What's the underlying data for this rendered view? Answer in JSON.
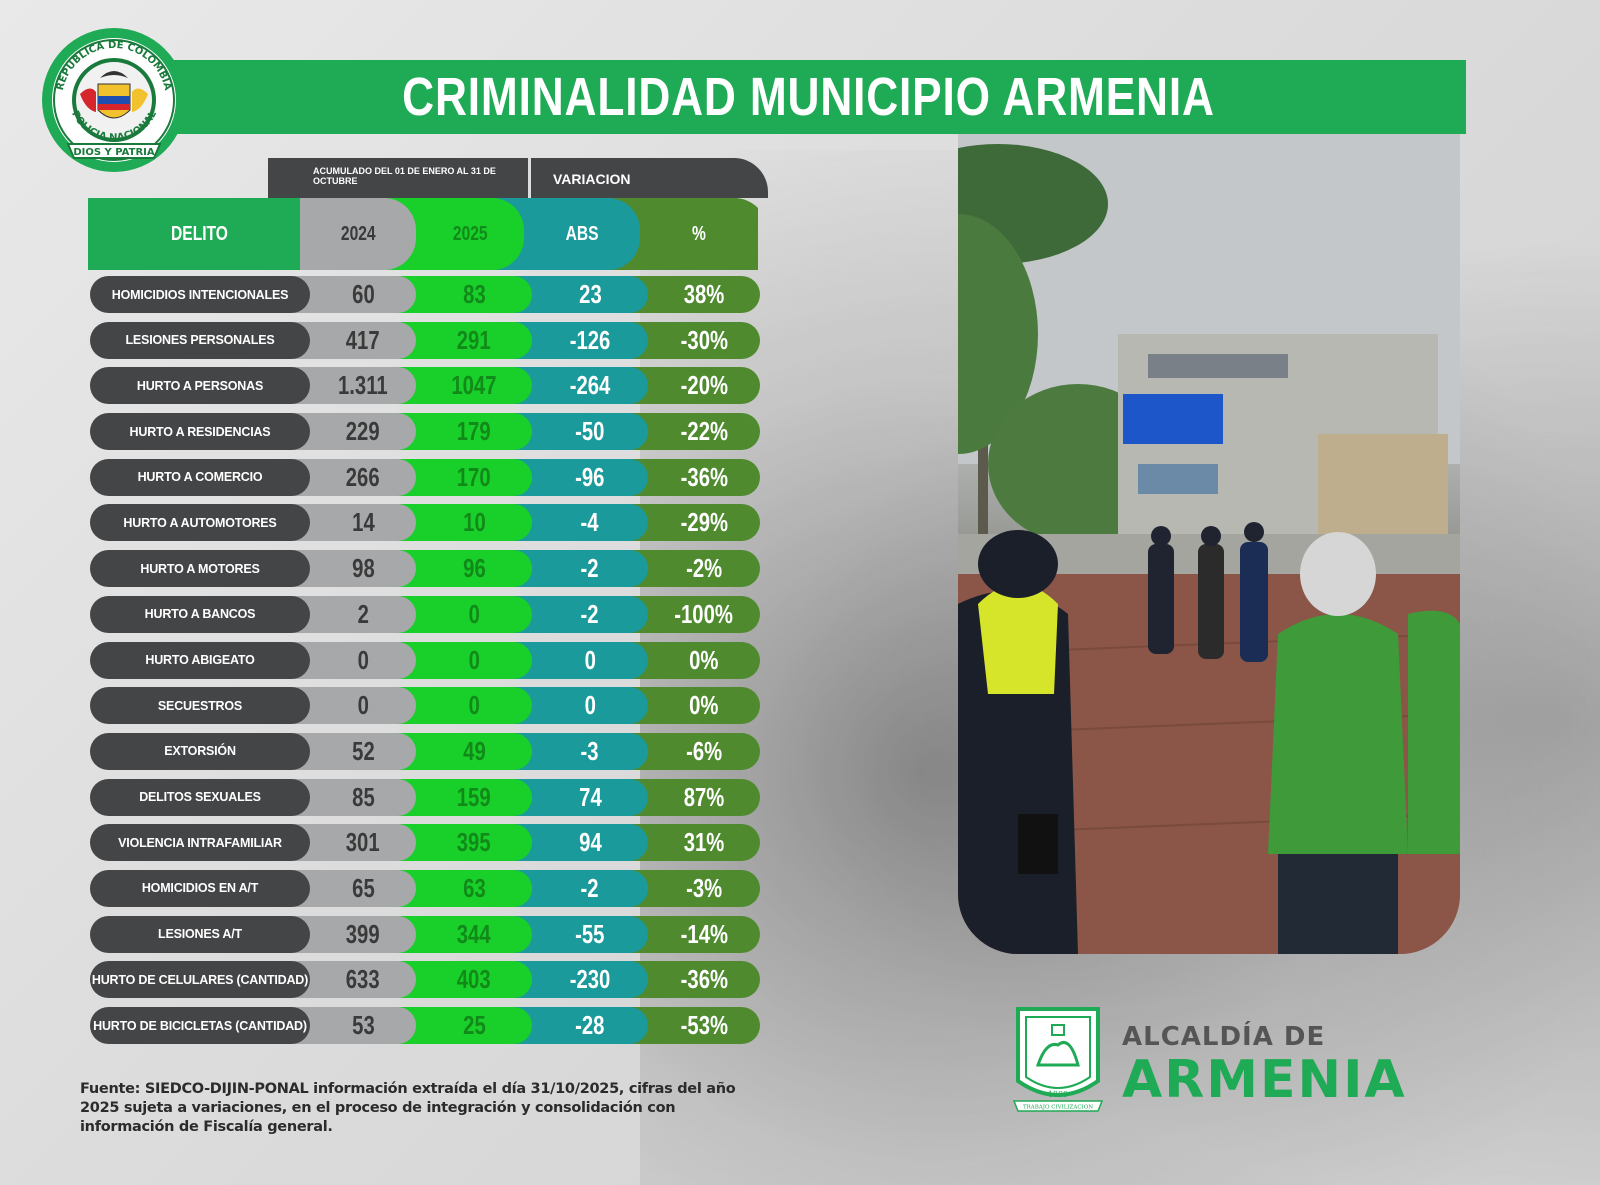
{
  "header": {
    "title": "CRIMINALIDAD MUNICIPIO ARMENIA"
  },
  "table": {
    "period_label": "ACUMULADO DEL 01 DE ENERO AL 31 DE OCTUBRE",
    "variation_label": "VARIACION",
    "columns": {
      "delito": "DELITO",
      "y2024": "2024",
      "y2025": "2025",
      "abs": "ABS",
      "pct": "%"
    },
    "rows": [
      {
        "delito": "HOMICIDIOS INTENCIONALES",
        "y2024": "60",
        "y2025": "83",
        "abs": "23",
        "pct": "38%"
      },
      {
        "delito": "LESIONES PERSONALES",
        "y2024": "417",
        "y2025": "291",
        "abs": "-126",
        "pct": "-30%"
      },
      {
        "delito": "HURTO A PERSONAS",
        "y2024": "1.311",
        "y2025": "1047",
        "abs": "-264",
        "pct": "-20%"
      },
      {
        "delito": "HURTO A RESIDENCIAS",
        "y2024": "229",
        "y2025": "179",
        "abs": "-50",
        "pct": "-22%"
      },
      {
        "delito": "HURTO A COMERCIO",
        "y2024": "266",
        "y2025": "170",
        "abs": "-96",
        "pct": "-36%"
      },
      {
        "delito": "HURTO A AUTOMOTORES",
        "y2024": "14",
        "y2025": "10",
        "abs": "-4",
        "pct": "-29%"
      },
      {
        "delito": "HURTO A MOTORES",
        "y2024": "98",
        "y2025": "96",
        "abs": "-2",
        "pct": "-2%"
      },
      {
        "delito": "HURTO A BANCOS",
        "y2024": "2",
        "y2025": "0",
        "abs": "-2",
        "pct": "-100%"
      },
      {
        "delito": "HURTO ABIGEATO",
        "y2024": "0",
        "y2025": "0",
        "abs": "0",
        "pct": "0%"
      },
      {
        "delito": "SECUESTROS",
        "y2024": "0",
        "y2025": "0",
        "abs": "0",
        "pct": "0%"
      },
      {
        "delito": "EXTORSIÓN",
        "y2024": "52",
        "y2025": "49",
        "abs": "-3",
        "pct": "-6%"
      },
      {
        "delito": "DELITOS SEXUALES",
        "y2024": "85",
        "y2025": "159",
        "abs": "74",
        "pct": "87%"
      },
      {
        "delito": "VIOLENCIA INTRAFAMILIAR",
        "y2024": "301",
        "y2025": "395",
        "abs": "94",
        "pct": "31%"
      },
      {
        "delito": "HOMICIDIOS EN A/T",
        "y2024": "65",
        "y2025": "63",
        "abs": "-2",
        "pct": "-3%"
      },
      {
        "delito": "LESIONES A/T",
        "y2024": "399",
        "y2025": "344",
        "abs": "-55",
        "pct": "-14%"
      },
      {
        "delito": "HURTO DE CELULARES (CANTIDAD)",
        "y2024": "633",
        "y2025": "403",
        "abs": "-230",
        "pct": "-36%"
      },
      {
        "delito": "HURTO DE BICICLETAS (CANTIDAD)",
        "y2024": "53",
        "y2025": "25",
        "abs": "-28",
        "pct": "-53%"
      }
    ]
  },
  "footnote": "Fuente: SIEDCO-DIJIN-PONAL información extraída el día 31/10/2025, cifras del año 2025 sujeta a variaciones, en el proceso de integración y consolidación con información de Fiscalía general.",
  "seal": {
    "ring_text_top": "REPUBLICA DE COLOMBIA",
    "ring_text_bottom": "POLICIA NACIONAL",
    "banner": "DIOS Y PATRIA"
  },
  "logo": {
    "line1": "ALCALDÍA DE",
    "line2": "ARMENIA",
    "year": "1889",
    "motto": "TRABAJO CIVILIZACION"
  },
  "colors": {
    "brand_green": "#1faa55",
    "dark_gray": "#444547",
    "col_2024": "#a7a8aa",
    "col_2025": "#19cf2a",
    "col_abs": "#1a9a9a",
    "col_pct": "#4f8a2f"
  }
}
